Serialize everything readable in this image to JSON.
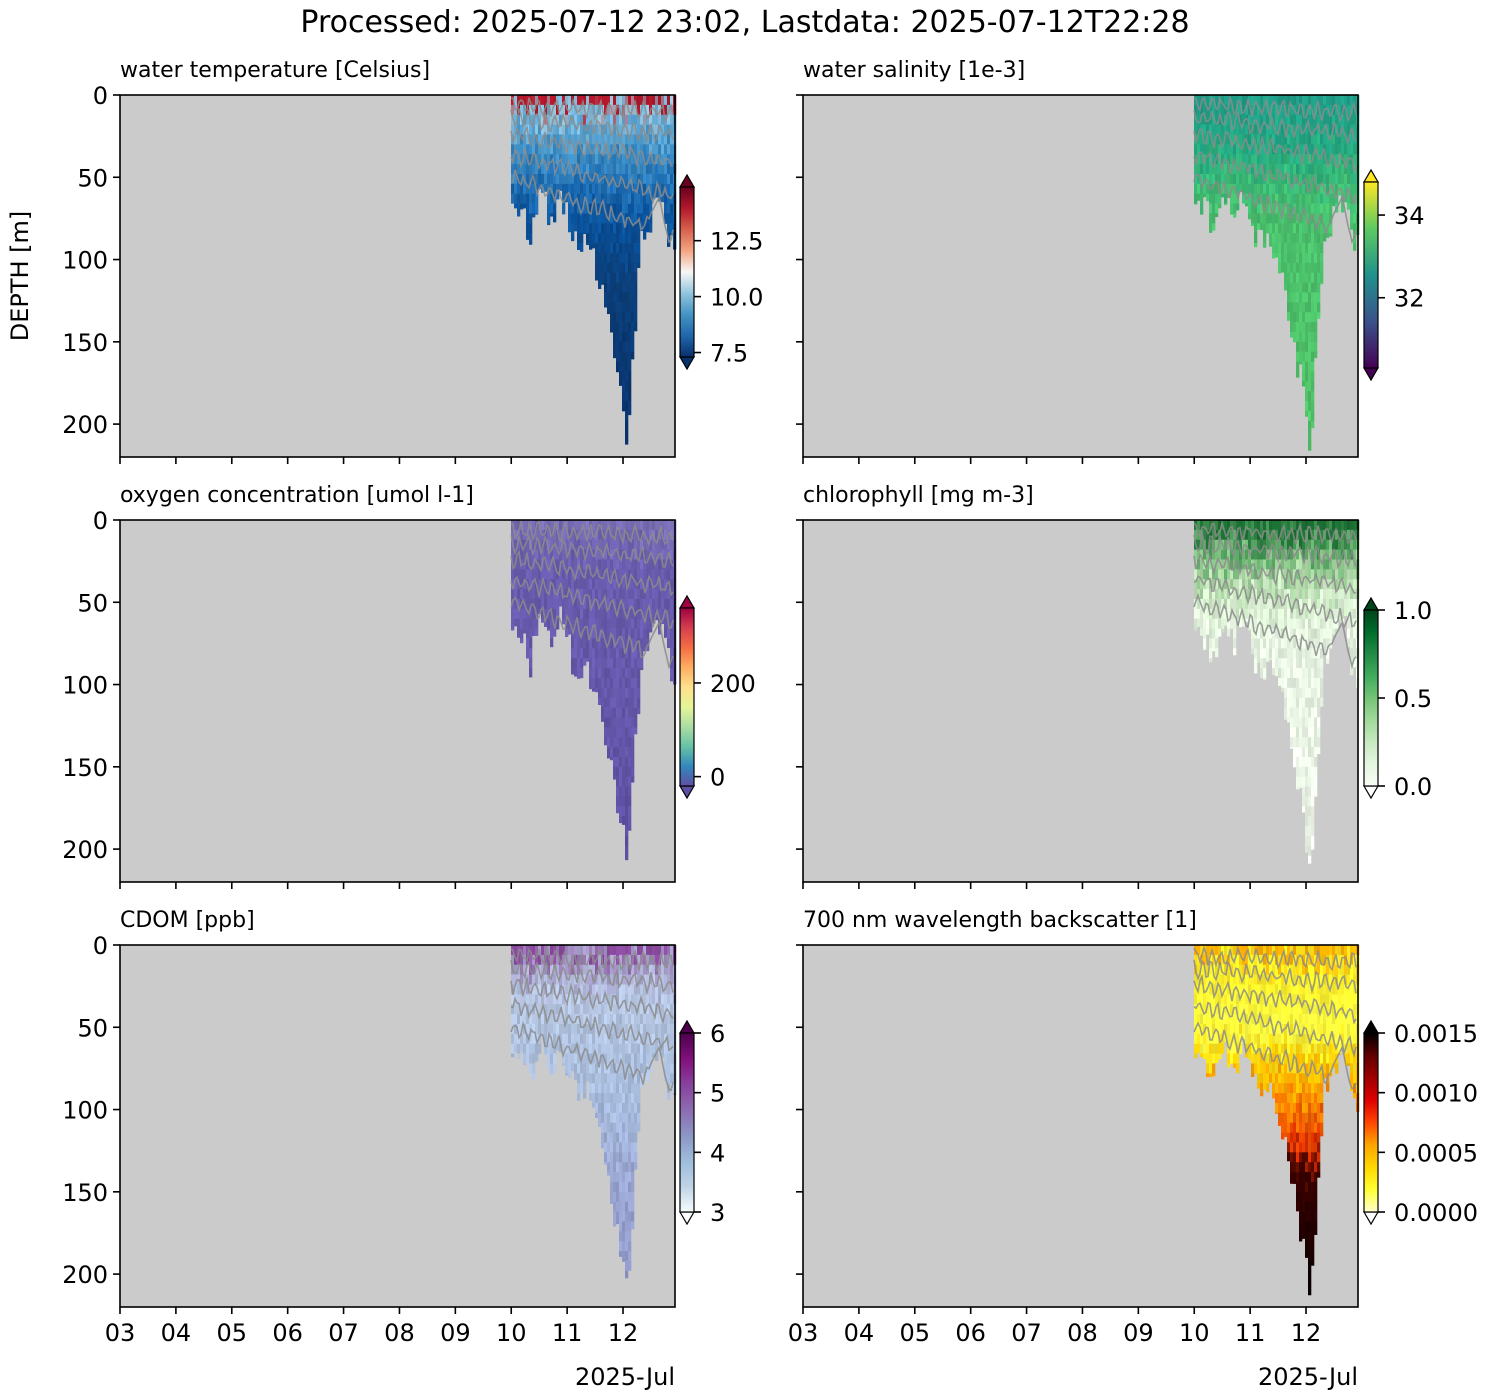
{
  "figure": {
    "title": "Processed: 2025-07-12 23:02, Lastdata: 2025-07-12T22:28",
    "ylabel": "DEPTH [m]",
    "xaxis_year_month": "2025-Jul",
    "panel_background": "#cbcbcb",
    "contour_color": "#8c8c8c"
  },
  "chart_data": [
    {
      "type": "heatmap",
      "title": "water temperature [Celsius]",
      "xlabel": "",
      "ylabel": "DEPTH [m]",
      "x_ticks": [
        "03",
        "04",
        "05",
        "06",
        "07",
        "08",
        "09",
        "10",
        "11",
        "12"
      ],
      "x_range_days": [
        3,
        12.93
      ],
      "ylim_depth_m": [
        0,
        220
      ],
      "y_ticks": [
        0,
        50,
        100,
        150,
        200
      ],
      "data_start_day": 10.0,
      "max_depth_m": 216,
      "colormap": [
        "#08306b",
        "#2166ac",
        "#4393c3",
        "#92c5de",
        "#f7f7f7",
        "#f4a582",
        "#d6604d",
        "#b2182b",
        "#67001f"
      ],
      "colorbar": {
        "ticks": [
          7.5,
          10.0,
          12.5
        ],
        "tick_labels": [
          "7.5",
          "10.0",
          "12.5"
        ],
        "range": [
          7.3,
          14.9
        ],
        "extend": "both",
        "extend_low": "#08306b",
        "extend_high": "#67001f"
      },
      "profile_colors": [
        {
          "depth_m": 0,
          "color": "#b2182b"
        },
        {
          "depth_m": 5,
          "color": "#9ecae1"
        },
        {
          "depth_m": 15,
          "color": "#6baed6"
        },
        {
          "depth_m": 30,
          "color": "#4292c6"
        },
        {
          "depth_m": 50,
          "color": "#2171b5"
        },
        {
          "depth_m": 75,
          "color": "#08519c"
        },
        {
          "depth_m": 110,
          "color": "#0b3f7a"
        },
        {
          "depth_m": 220,
          "color": "#08306b"
        }
      ]
    },
    {
      "type": "heatmap",
      "title": "water salinity [1e-3]",
      "xlabel": "",
      "ylabel": "",
      "x_ticks": [
        "03",
        "04",
        "05",
        "06",
        "07",
        "08",
        "09",
        "10",
        "11",
        "12"
      ],
      "x_range_days": [
        3,
        12.93
      ],
      "ylim_depth_m": [
        0,
        220
      ],
      "y_ticks": [
        0,
        50,
        100,
        150,
        200
      ],
      "data_start_day": 10.0,
      "max_depth_m": 216,
      "colormap": [
        "#440154",
        "#3b528b",
        "#21918c",
        "#5ec962",
        "#fde725"
      ],
      "colorbar": {
        "ticks": [
          32,
          34
        ],
        "tick_labels": [
          "32",
          "34"
        ],
        "range": [
          30.3,
          34.8
        ],
        "extend": "both",
        "extend_low": "#440154",
        "extend_high": "#fde725"
      },
      "profile_colors": [
        {
          "depth_m": 0,
          "color": "#1f9e89"
        },
        {
          "depth_m": 25,
          "color": "#22a884"
        },
        {
          "depth_m": 45,
          "color": "#35b779"
        },
        {
          "depth_m": 70,
          "color": "#4ac16d"
        },
        {
          "depth_m": 220,
          "color": "#54c568"
        }
      ]
    },
    {
      "type": "heatmap",
      "title": "oxygen concentration [umol l-1]",
      "xlabel": "",
      "ylabel": "",
      "x_ticks": [
        "03",
        "04",
        "05",
        "06",
        "07",
        "08",
        "09",
        "10",
        "11",
        "12"
      ],
      "x_range_days": [
        3,
        12.93
      ],
      "ylim_depth_m": [
        0,
        220
      ],
      "y_ticks": [
        0,
        50,
        100,
        150,
        200
      ],
      "data_start_day": 10.0,
      "max_depth_m": 216,
      "colormap": [
        "#5e4fa2",
        "#3288bd",
        "#66c2a5",
        "#abdda4",
        "#e6f598",
        "#fee08b",
        "#fdae61",
        "#f46d43",
        "#d53e4f",
        "#9e0142"
      ],
      "colorbar": {
        "ticks": [
          0,
          200
        ],
        "tick_labels": [
          "0",
          "200"
        ],
        "range": [
          -20,
          360
        ],
        "extend": "both",
        "extend_low": "#5e4fa2",
        "extend_high": "#9e0142"
      },
      "profile_colors": [
        {
          "depth_m": 0,
          "color": "#7b6fb5"
        },
        {
          "depth_m": 20,
          "color": "#6a5db0"
        },
        {
          "depth_m": 220,
          "color": "#5e4fa2"
        }
      ]
    },
    {
      "type": "heatmap",
      "title": "chlorophyll [mg m-3]",
      "xlabel": "",
      "ylabel": "",
      "x_ticks": [
        "03",
        "04",
        "05",
        "06",
        "07",
        "08",
        "09",
        "10",
        "11",
        "12"
      ],
      "x_range_days": [
        3,
        12.93
      ],
      "ylim_depth_m": [
        0,
        220
      ],
      "y_ticks": [
        0,
        50,
        100,
        150,
        200
      ],
      "data_start_day": 10.0,
      "max_depth_m": 216,
      "colormap": [
        "#f7fcf5",
        "#e5f5e0",
        "#c7e9c0",
        "#a1d99b",
        "#74c476",
        "#41ab5d",
        "#238b45",
        "#006d2c",
        "#00441b"
      ],
      "colorbar": {
        "ticks": [
          0.0,
          0.5,
          1.0
        ],
        "tick_labels": [
          "0.0",
          "0.5",
          "1.0"
        ],
        "range": [
          0.0,
          1.0
        ],
        "extend": "both",
        "extend_low": "#ffffff",
        "extend_high": "#00441b"
      },
      "profile_colors": [
        {
          "depth_m": 0,
          "color": "#1b6e33"
        },
        {
          "depth_m": 15,
          "color": "#5aa865"
        },
        {
          "depth_m": 30,
          "color": "#a8d5a0"
        },
        {
          "depth_m": 45,
          "color": "#d5eecd"
        },
        {
          "depth_m": 70,
          "color": "#e8f5e3"
        },
        {
          "depth_m": 220,
          "color": "#f2faee"
        }
      ]
    },
    {
      "type": "heatmap",
      "title": "CDOM [ppb]",
      "xlabel": "2025-Jul",
      "ylabel": "",
      "x_ticks": [
        "03",
        "04",
        "05",
        "06",
        "07",
        "08",
        "09",
        "10",
        "11",
        "12"
      ],
      "x_range_days": [
        3,
        12.93
      ],
      "ylim_depth_m": [
        0,
        220
      ],
      "y_ticks": [
        0,
        50,
        100,
        150,
        200
      ],
      "data_start_day": 10.0,
      "max_depth_m": 216,
      "colormap": [
        "#f7fcfd",
        "#bfd3e6",
        "#9ebcda",
        "#8c96c6",
        "#8c6bb1",
        "#88419d",
        "#810f7c",
        "#4d004b"
      ],
      "colorbar": {
        "ticks": [
          3,
          4,
          5,
          6
        ],
        "tick_labels": [
          "3",
          "4",
          "5",
          "6"
        ],
        "range": [
          3,
          6
        ],
        "extend": "both",
        "extend_low": "#ffffff",
        "extend_high": "#4d004b"
      },
      "profile_colors": [
        {
          "depth_m": 0,
          "color": "#8c4aa0"
        },
        {
          "depth_m": 8,
          "color": "#a69cc9"
        },
        {
          "depth_m": 30,
          "color": "#b6c6e1"
        },
        {
          "depth_m": 90,
          "color": "#a9bedf"
        },
        {
          "depth_m": 140,
          "color": "#9aa6d2"
        },
        {
          "depth_m": 220,
          "color": "#8f96c9"
        }
      ]
    },
    {
      "type": "heatmap",
      "title": "700 nm wavelength backscatter [1]",
      "xlabel": "2025-Jul",
      "ylabel": "",
      "x_ticks": [
        "03",
        "04",
        "05",
        "06",
        "07",
        "08",
        "09",
        "10",
        "11",
        "12"
      ],
      "x_range_days": [
        3,
        12.93
      ],
      "ylim_depth_m": [
        0,
        220
      ],
      "y_ticks": [
        0,
        50,
        100,
        150,
        200
      ],
      "data_start_day": 10.0,
      "max_depth_m": 216,
      "colormap": [
        "#ffffcc",
        "#ffff33",
        "#ffd700",
        "#ffa500",
        "#ff4500",
        "#e00000",
        "#a00000",
        "#600000",
        "#000000"
      ],
      "colorbar": {
        "ticks": [
          0.0,
          0.0005,
          0.001,
          0.0015
        ],
        "tick_labels": [
          "0.0000",
          "0.0005",
          "0.0010",
          "0.0015"
        ],
        "range": [
          0.0,
          0.0015
        ],
        "extend": "both",
        "extend_low": "#ffffff",
        "extend_high": "#000000"
      },
      "profile_colors": [
        {
          "depth_m": 0,
          "color": "#ffb000"
        },
        {
          "depth_m": 10,
          "color": "#ffee22"
        },
        {
          "depth_m": 50,
          "color": "#ffff44"
        },
        {
          "depth_m": 70,
          "color": "#ffd000"
        },
        {
          "depth_m": 90,
          "color": "#ff8c00"
        },
        {
          "depth_m": 120,
          "color": "#e03000"
        },
        {
          "depth_m": 135,
          "color": "#3a0000"
        },
        {
          "depth_m": 220,
          "color": "#000000"
        }
      ]
    }
  ]
}
